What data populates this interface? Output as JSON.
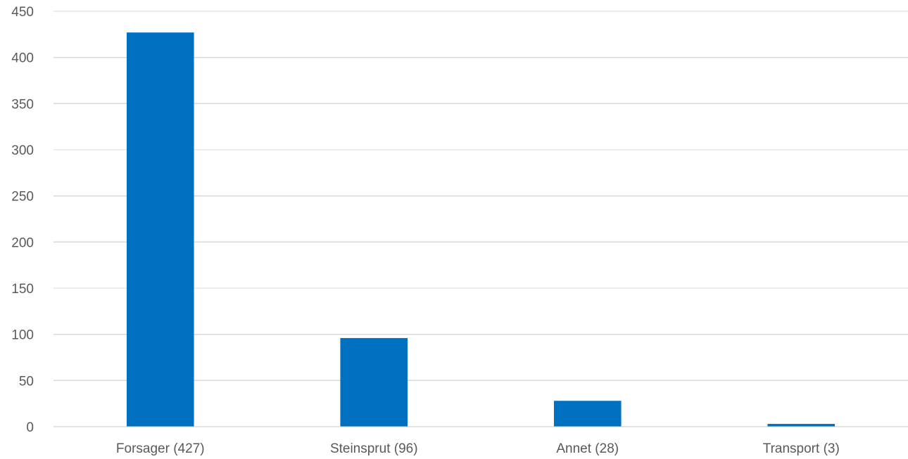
{
  "chart_data": {
    "type": "bar",
    "title": "",
    "xlabel": "",
    "ylabel": "",
    "categories": [
      "Forsager (427)",
      "Steinsprut (96)",
      "Annet (28)",
      "Transport (3)"
    ],
    "values": [
      427,
      96,
      28,
      3
    ],
    "ylim": [
      0,
      450
    ],
    "yticks": [
      0,
      50,
      100,
      150,
      200,
      250,
      300,
      350,
      400,
      450
    ],
    "grid": true,
    "legend": "none",
    "bar_color": "#0070c0"
  }
}
